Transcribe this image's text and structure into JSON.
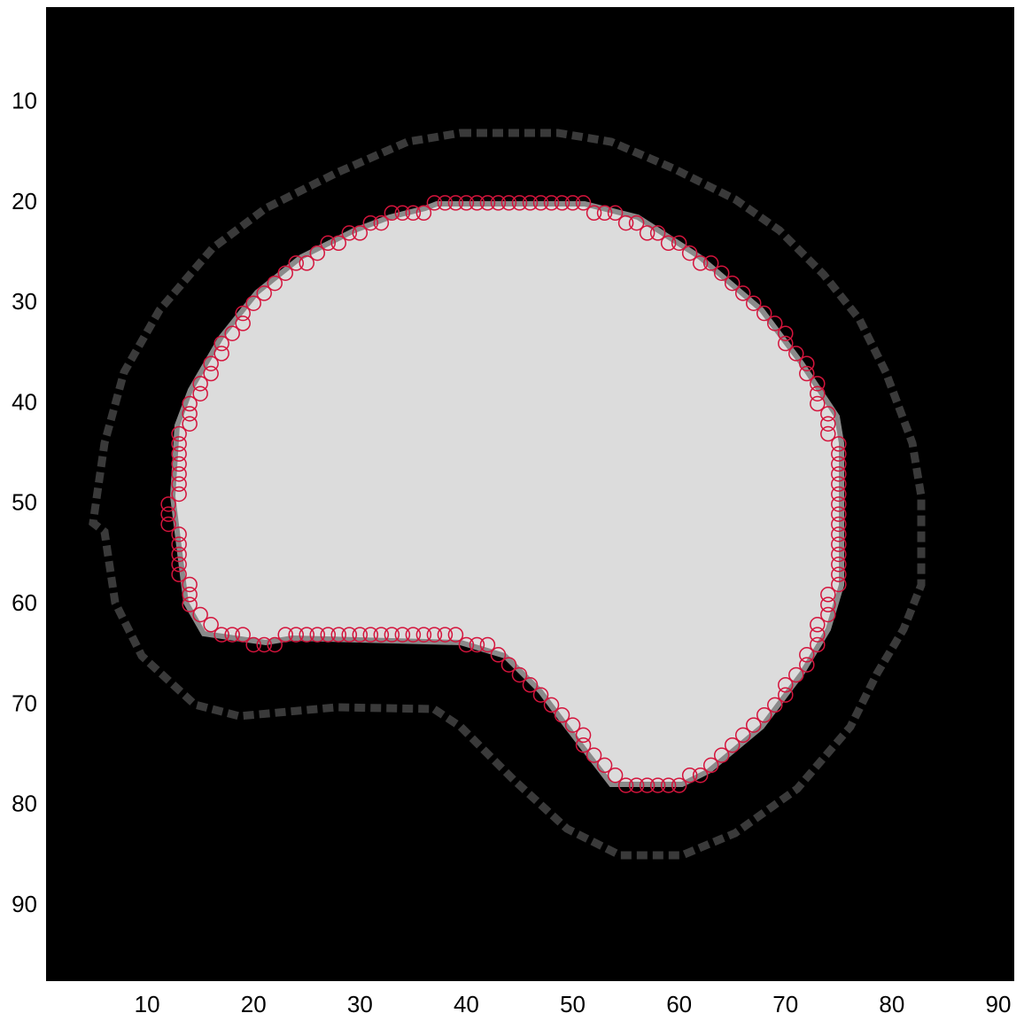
{
  "chart_data": {
    "type": "scatter",
    "color": "#d4143c",
    "marker": "circle",
    "yreverse": true,
    "xlim": [
      0.5,
      91.5
    ],
    "ylim": [
      0.5,
      97.5
    ],
    "xticks": [
      10,
      20,
      30,
      40,
      50,
      60,
      70,
      80,
      90
    ],
    "yticks": [
      10,
      20,
      30,
      40,
      50,
      60,
      70,
      80,
      90
    ],
    "x": [
      37,
      38,
      39,
      40,
      41,
      42,
      43,
      44,
      45,
      46,
      47,
      48,
      49,
      50,
      51,
      52,
      53,
      54,
      55,
      56,
      57,
      58,
      59,
      60,
      61,
      62,
      63,
      64,
      65,
      66,
      67,
      68,
      69,
      70,
      70,
      71,
      72,
      72,
      73,
      73,
      73,
      74,
      74,
      74,
      75,
      75,
      75,
      75,
      75,
      75,
      75,
      75,
      75,
      75,
      75,
      75,
      75,
      75,
      75,
      74,
      74,
      74,
      73,
      73,
      73,
      72,
      72,
      71,
      70,
      70,
      69,
      68,
      67,
      66,
      65,
      64,
      63,
      62,
      61,
      60,
      59,
      58,
      57,
      56,
      55,
      54,
      53,
      52,
      51,
      51,
      50,
      49,
      48,
      47,
      46,
      45,
      44,
      43,
      42,
      41,
      40,
      39,
      38,
      37,
      36,
      35,
      34,
      33,
      32,
      31,
      30,
      29,
      28,
      27,
      26,
      25,
      24,
      23,
      22,
      21,
      20,
      19,
      18,
      17,
      16,
      15,
      14,
      14,
      14,
      13,
      13,
      13,
      13,
      13,
      12,
      12,
      12,
      13,
      13,
      13,
      13,
      13,
      13,
      13,
      14,
      14,
      14,
      15,
      15,
      16,
      16,
      17,
      17,
      18,
      19,
      19,
      20,
      21,
      22,
      23,
      24,
      25,
      26,
      27,
      28,
      29,
      30,
      31,
      32,
      33,
      34,
      35,
      36
    ],
    "values": [
      20,
      20,
      20,
      20,
      20,
      20,
      20,
      20,
      20,
      20,
      20,
      20,
      20,
      20,
      20,
      21,
      21,
      21,
      22,
      22,
      23,
      23,
      24,
      24,
      25,
      26,
      26,
      27,
      28,
      29,
      30,
      31,
      32,
      33,
      34,
      35,
      36,
      37,
      38,
      39,
      40,
      41,
      42,
      43,
      44,
      45,
      46,
      47,
      48,
      49,
      50,
      51,
      52,
      53,
      54,
      55,
      56,
      57,
      58,
      59,
      60,
      61,
      62,
      63,
      64,
      65,
      66,
      67,
      68,
      69,
      70,
      71,
      72,
      73,
      74,
      75,
      76,
      77,
      77,
      78,
      78,
      78,
      78,
      78,
      78,
      77,
      76,
      75,
      74,
      73,
      72,
      71,
      70,
      69,
      68,
      67,
      66,
      65,
      64,
      64,
      64,
      63,
      63,
      63,
      63,
      63,
      63,
      63,
      63,
      63,
      63,
      63,
      63,
      63,
      63,
      63,
      63,
      63,
      64,
      64,
      64,
      63,
      63,
      63,
      62,
      61,
      60,
      59,
      58,
      57,
      56,
      55,
      54,
      53,
      52,
      51,
      50,
      49,
      48,
      47,
      46,
      45,
      44,
      43,
      42,
      41,
      40,
      39,
      38,
      37,
      36,
      35,
      34,
      33,
      32,
      31,
      30,
      29,
      28,
      27,
      26,
      26,
      25,
      24,
      24,
      23,
      23,
      22,
      22,
      21,
      21,
      21,
      21
    ]
  }
}
